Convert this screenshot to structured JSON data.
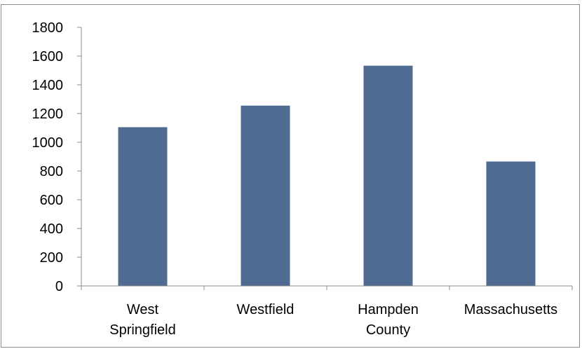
{
  "chart_data": {
    "type": "bar",
    "title": "",
    "xlabel": "",
    "ylabel": "",
    "categories": [
      [
        "West",
        "Springfield"
      ],
      [
        "Westfield"
      ],
      [
        "Hampden",
        "County"
      ],
      [
        "Massachusetts"
      ]
    ],
    "values": [
      1105,
      1255,
      1533,
      866
    ],
    "ylim": [
      0,
      1800
    ],
    "yticks": [
      "0",
      "200",
      "400",
      "600",
      "800",
      "1000",
      "1200",
      "1400",
      "1600",
      "1800"
    ],
    "grid": false,
    "legend": "none",
    "bar_color": "#4f6b91",
    "axis_color": "#8c8c8c"
  }
}
